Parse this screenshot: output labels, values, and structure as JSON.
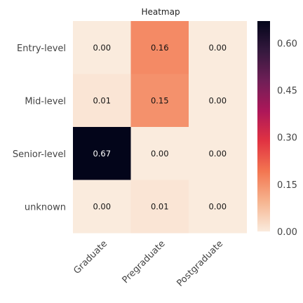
{
  "chart_data": {
    "type": "heatmap",
    "title": "Heatmap",
    "x_categories": [
      "Graduate",
      "Pregraduate",
      "Postgraduate"
    ],
    "y_categories": [
      "Entry-level",
      "Mid-level",
      "Senior-level",
      "unknown"
    ],
    "values": [
      [
        0.0,
        0.16,
        0.0
      ],
      [
        0.01,
        0.15,
        0.0
      ],
      [
        0.67,
        0.0,
        0.0
      ],
      [
        0.0,
        0.01,
        0.0
      ]
    ],
    "cell_labels": [
      [
        "0.00",
        "0.16",
        "0.00"
      ],
      [
        "0.01",
        "0.15",
        "0.00"
      ],
      [
        "0.67",
        "0.00",
        "0.00"
      ],
      [
        "0.00",
        "0.01",
        "0.00"
      ]
    ],
    "colorbar": {
      "range": [
        0,
        0.67
      ],
      "ticks": [
        0.0,
        0.15,
        0.3,
        0.45,
        0.6
      ],
      "tick_labels": [
        "0.00",
        "0.15",
        "0.30",
        "0.45",
        "0.60"
      ]
    },
    "colormap": "rocket_r",
    "colormap_stops": [
      "#faebdd",
      "#f6b48f",
      "#f37651",
      "#e13342",
      "#ad1759",
      "#701f57",
      "#35193e",
      "#03051a"
    ],
    "xlabel": "",
    "ylabel": "",
    "grid": false,
    "legend": "colorbar-right"
  }
}
